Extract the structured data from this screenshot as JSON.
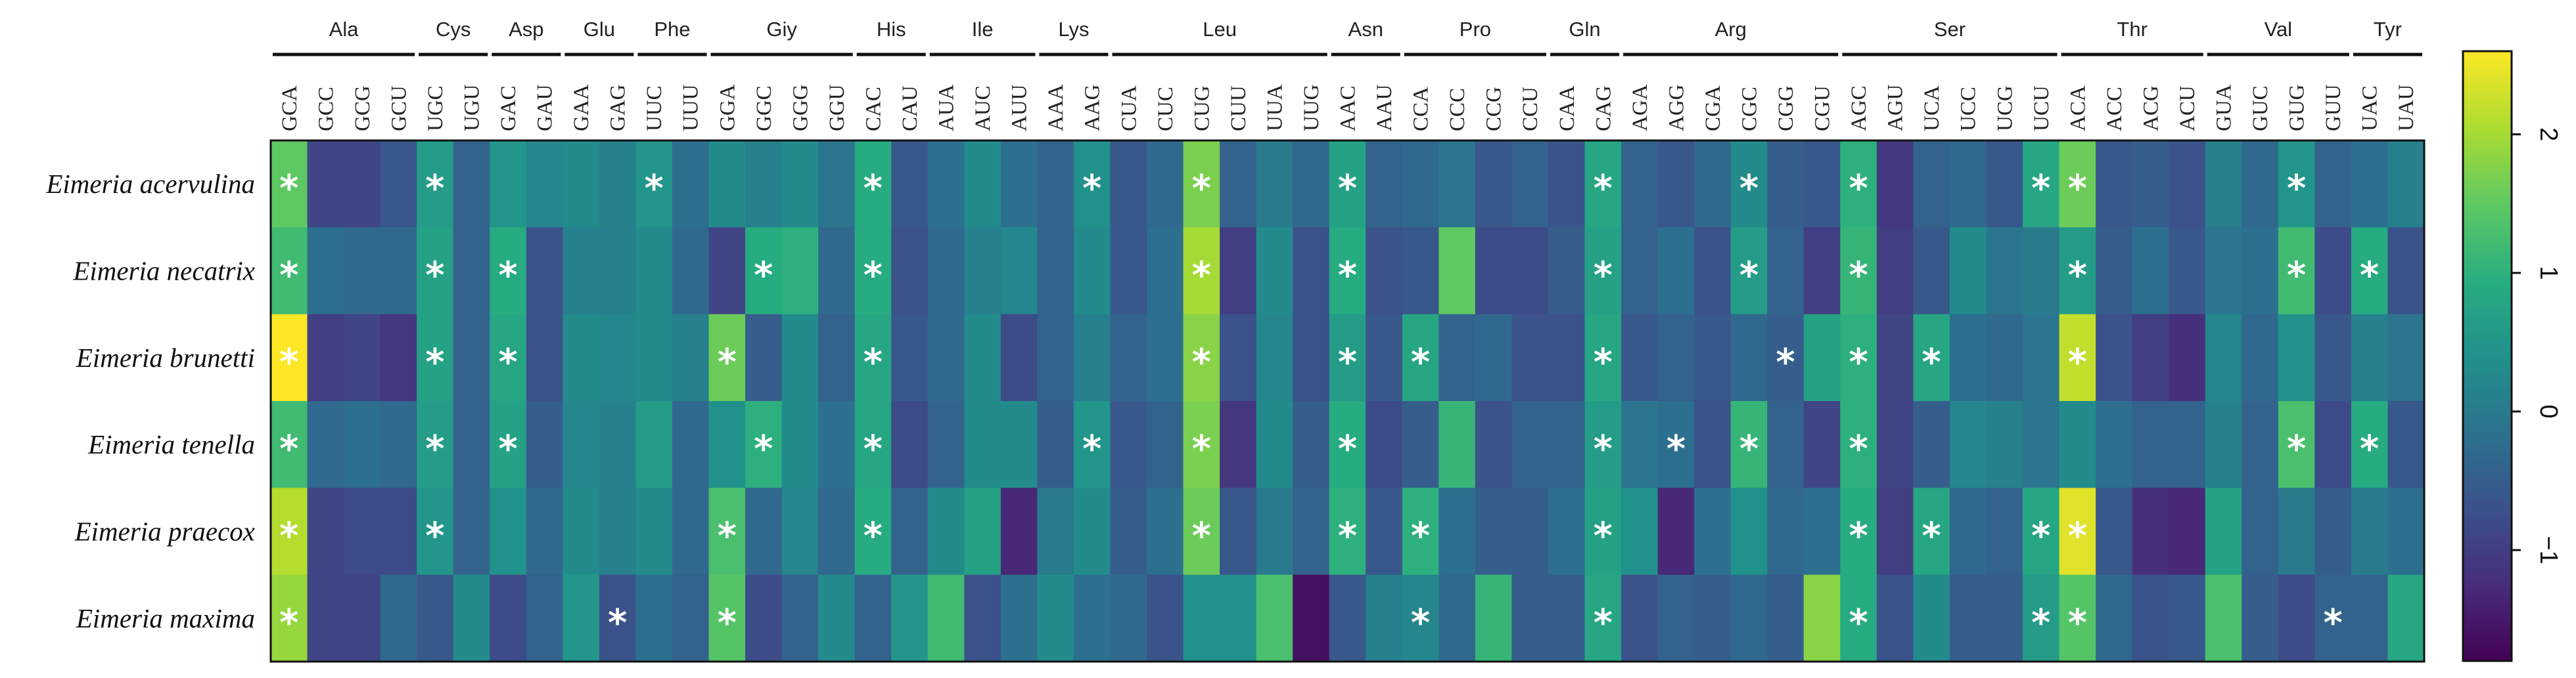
{
  "chart_data": {
    "type": "heatmap",
    "title": "",
    "rows": [
      "Eimeria acervulina",
      "Eimeria necatrix",
      "Eimeria brunetti",
      "Eimeria tenella",
      "Eimeria praecox",
      "Eimeria maxima"
    ],
    "columns": [
      "GCA",
      "GCC",
      "GCG",
      "GCU",
      "UGC",
      "UGU",
      "GAC",
      "GAU",
      "GAA",
      "GAG",
      "UUC",
      "UUU",
      "GGA",
      "GGC",
      "GGG",
      "GGU",
      "CAC",
      "CAU",
      "AUA",
      "AUC",
      "AUU",
      "AAA",
      "AAG",
      "CUA",
      "CUC",
      "CUG",
      "CUU",
      "UUA",
      "UUG",
      "AAC",
      "AAU",
      "CCA",
      "CCC",
      "CCG",
      "CCU",
      "CAA",
      "CAG",
      "AGA",
      "AGG",
      "CGA",
      "CGC",
      "CGG",
      "CGU",
      "AGC",
      "AGU",
      "UCA",
      "UCC",
      "UCG",
      "UCU",
      "ACA",
      "ACC",
      "ACG",
      "ACU",
      "GUA",
      "GUC",
      "GUG",
      "GUU",
      "UAC",
      "UAU"
    ],
    "groups": [
      {
        "label": "Ala",
        "start": 0,
        "end": 3
      },
      {
        "label": "Cys",
        "start": 4,
        "end": 5
      },
      {
        "label": "Asp",
        "start": 6,
        "end": 7
      },
      {
        "label": "Glu",
        "start": 8,
        "end": 9
      },
      {
        "label": "Phe",
        "start": 10,
        "end": 11
      },
      {
        "label": "Giy",
        "start": 12,
        "end": 15
      },
      {
        "label": "His",
        "start": 16,
        "end": 17
      },
      {
        "label": "Ile",
        "start": 18,
        "end": 20
      },
      {
        "label": "Lys",
        "start": 21,
        "end": 22
      },
      {
        "label": "Leu",
        "start": 23,
        "end": 28
      },
      {
        "label": "Asn",
        "start": 29,
        "end": 30
      },
      {
        "label": "Pro",
        "start": 31,
        "end": 34
      },
      {
        "label": "Gln",
        "start": 35,
        "end": 36
      },
      {
        "label": "Arg",
        "start": 37,
        "end": 42
      },
      {
        "label": "Ser",
        "start": 43,
        "end": 48
      },
      {
        "label": "Thr",
        "start": 49,
        "end": 52
      },
      {
        "label": "Val",
        "start": 53,
        "end": 56
      },
      {
        "label": "Tyr",
        "start": 57,
        "end": 58
      }
    ],
    "values": [
      [
        1.5,
        -0.9,
        -0.9,
        -0.6,
        0.6,
        -0.4,
        0.5,
        0.2,
        0.3,
        0.1,
        0.5,
        -0.2,
        0.3,
        0.1,
        0.3,
        -0.1,
        0.9,
        -0.6,
        -0.2,
        0.3,
        -0.2,
        -0.4,
        0.4,
        -0.6,
        -0.3,
        1.7,
        -0.4,
        0.0,
        -0.3,
        0.7,
        -0.4,
        -0.3,
        -0.1,
        -0.6,
        -0.4,
        -0.7,
        0.8,
        -0.4,
        -0.6,
        -0.3,
        0.3,
        -0.5,
        -0.6,
        1.0,
        -1.1,
        -0.4,
        -0.3,
        -0.6,
        0.8,
        1.6,
        -0.6,
        -0.5,
        -0.7,
        0.1,
        -0.3,
        0.5,
        -0.4,
        -0.2,
        0.1
      ],
      [
        1.2,
        -0.2,
        -0.3,
        -0.3,
        0.7,
        -0.4,
        0.9,
        -0.7,
        0.1,
        0.1,
        0.3,
        -0.3,
        -0.9,
        0.9,
        1.0,
        -0.3,
        0.9,
        -0.7,
        -0.3,
        0.1,
        0.2,
        -0.4,
        0.3,
        -0.6,
        -0.2,
        2.0,
        -1.0,
        0.3,
        -0.7,
        0.9,
        -0.7,
        -0.6,
        1.5,
        -0.8,
        -0.8,
        -0.5,
        0.7,
        -0.4,
        -0.2,
        -0.7,
        0.6,
        -0.4,
        -1.0,
        1.1,
        -1.0,
        -0.6,
        0.3,
        -0.1,
        0.0,
        0.6,
        -0.5,
        -0.2,
        -0.6,
        -0.1,
        -0.2,
        1.2,
        -0.8,
        0.9,
        -0.7
      ],
      [
        2.6,
        -1.0,
        -0.9,
        -1.1,
        0.7,
        -0.4,
        0.8,
        -0.7,
        0.3,
        0.2,
        0.3,
        0.1,
        1.6,
        -0.5,
        0.3,
        -0.4,
        0.8,
        -0.6,
        -0.3,
        0.3,
        -0.8,
        -0.4,
        0.1,
        -0.4,
        -0.2,
        1.8,
        -0.7,
        0.2,
        -0.7,
        0.6,
        -0.6,
        0.8,
        -0.4,
        -0.3,
        -0.7,
        -0.7,
        0.8,
        -0.6,
        -0.4,
        -0.6,
        -0.3,
        -0.5,
        0.7,
        1.0,
        -0.9,
        0.8,
        -0.2,
        -0.3,
        -0.1,
        2.2,
        -0.7,
        -1.0,
        -1.2,
        0.2,
        -0.3,
        0.4,
        -0.6,
        0.1,
        -0.1
      ],
      [
        1.2,
        -0.3,
        -0.2,
        -0.3,
        0.6,
        -0.4,
        0.7,
        -0.5,
        0.2,
        0.1,
        0.6,
        -0.3,
        0.4,
        1.0,
        0.3,
        -0.2,
        0.8,
        -0.8,
        -0.4,
        0.3,
        0.3,
        -0.5,
        0.5,
        -0.6,
        -0.4,
        1.7,
        -1.1,
        0.3,
        -0.5,
        0.9,
        -0.8,
        -0.5,
        1.1,
        -0.7,
        -0.4,
        -0.4,
        0.6,
        -0.1,
        -0.2,
        -0.7,
        1.1,
        -0.4,
        -0.9,
        1.0,
        -0.9,
        -0.5,
        0.2,
        0.1,
        -0.1,
        0.3,
        -0.2,
        -0.4,
        -0.4,
        0.1,
        -0.4,
        1.3,
        -0.8,
        0.9,
        -0.6
      ],
      [
        2.1,
        -0.9,
        -0.8,
        -0.8,
        0.5,
        -0.4,
        0.4,
        -0.3,
        0.3,
        0.1,
        0.3,
        -0.3,
        1.3,
        -0.3,
        0.2,
        -0.3,
        0.9,
        -0.4,
        0.3,
        0.7,
        -1.3,
        0.0,
        0.3,
        -0.5,
        -0.2,
        1.6,
        -0.6,
        0.0,
        -0.4,
        1.0,
        -0.6,
        1.0,
        -0.2,
        -0.5,
        -0.5,
        -0.2,
        0.7,
        0.4,
        -1.3,
        -0.2,
        0.4,
        -0.3,
        -0.2,
        0.9,
        -1.0,
        0.8,
        -0.3,
        -0.4,
        0.8,
        2.4,
        -0.6,
        -1.2,
        -1.3,
        0.7,
        -0.4,
        0.0,
        -0.5,
        0.0,
        -0.2
      ],
      [
        1.9,
        -0.9,
        -0.9,
        -0.3,
        -0.6,
        0.3,
        -0.8,
        -0.4,
        0.5,
        -0.7,
        -0.2,
        -0.4,
        1.4,
        -0.8,
        -0.4,
        0.3,
        -0.4,
        0.5,
        1.2,
        -0.7,
        -0.2,
        0.3,
        -0.2,
        -0.3,
        -0.7,
        0.4,
        0.4,
        1.3,
        -1.6,
        -0.6,
        0.1,
        0.2,
        -0.3,
        1.1,
        -0.5,
        -0.5,
        0.8,
        -0.7,
        -0.4,
        -0.5,
        -0.3,
        -0.5,
        1.8,
        0.9,
        -0.7,
        0.3,
        -0.5,
        -0.5,
        0.6,
        1.4,
        -0.3,
        -0.7,
        -0.6,
        1.3,
        -0.5,
        -0.8,
        -0.4,
        -0.4,
        0.8
      ]
    ],
    "significant": [
      [
        0,
        4,
        10,
        16,
        22,
        25,
        29,
        36,
        40,
        43,
        48,
        49,
        55
      ],
      [
        0,
        4,
        6,
        13,
        16,
        25,
        29,
        36,
        40,
        43,
        49,
        55,
        57
      ],
      [
        0,
        4,
        6,
        12,
        16,
        25,
        29,
        31,
        36,
        41,
        43,
        45,
        49
      ],
      [
        0,
        4,
        6,
        13,
        16,
        22,
        25,
        29,
        36,
        38,
        40,
        43,
        55,
        57
      ],
      [
        0,
        4,
        12,
        16,
        25,
        29,
        31,
        36,
        43,
        45,
        48,
        49
      ],
      [
        0,
        9,
        12,
        31,
        36,
        43,
        48,
        49,
        56
      ]
    ],
    "significance_marker": "*",
    "colormap": "viridis",
    "colorbar": {
      "range": [
        -1.8,
        2.6
      ],
      "ticks": [
        -1,
        0,
        1,
        2
      ],
      "tick_labels": [
        "−1",
        "0",
        "1",
        "2"
      ]
    },
    "xlabel": "",
    "ylabel": ""
  }
}
